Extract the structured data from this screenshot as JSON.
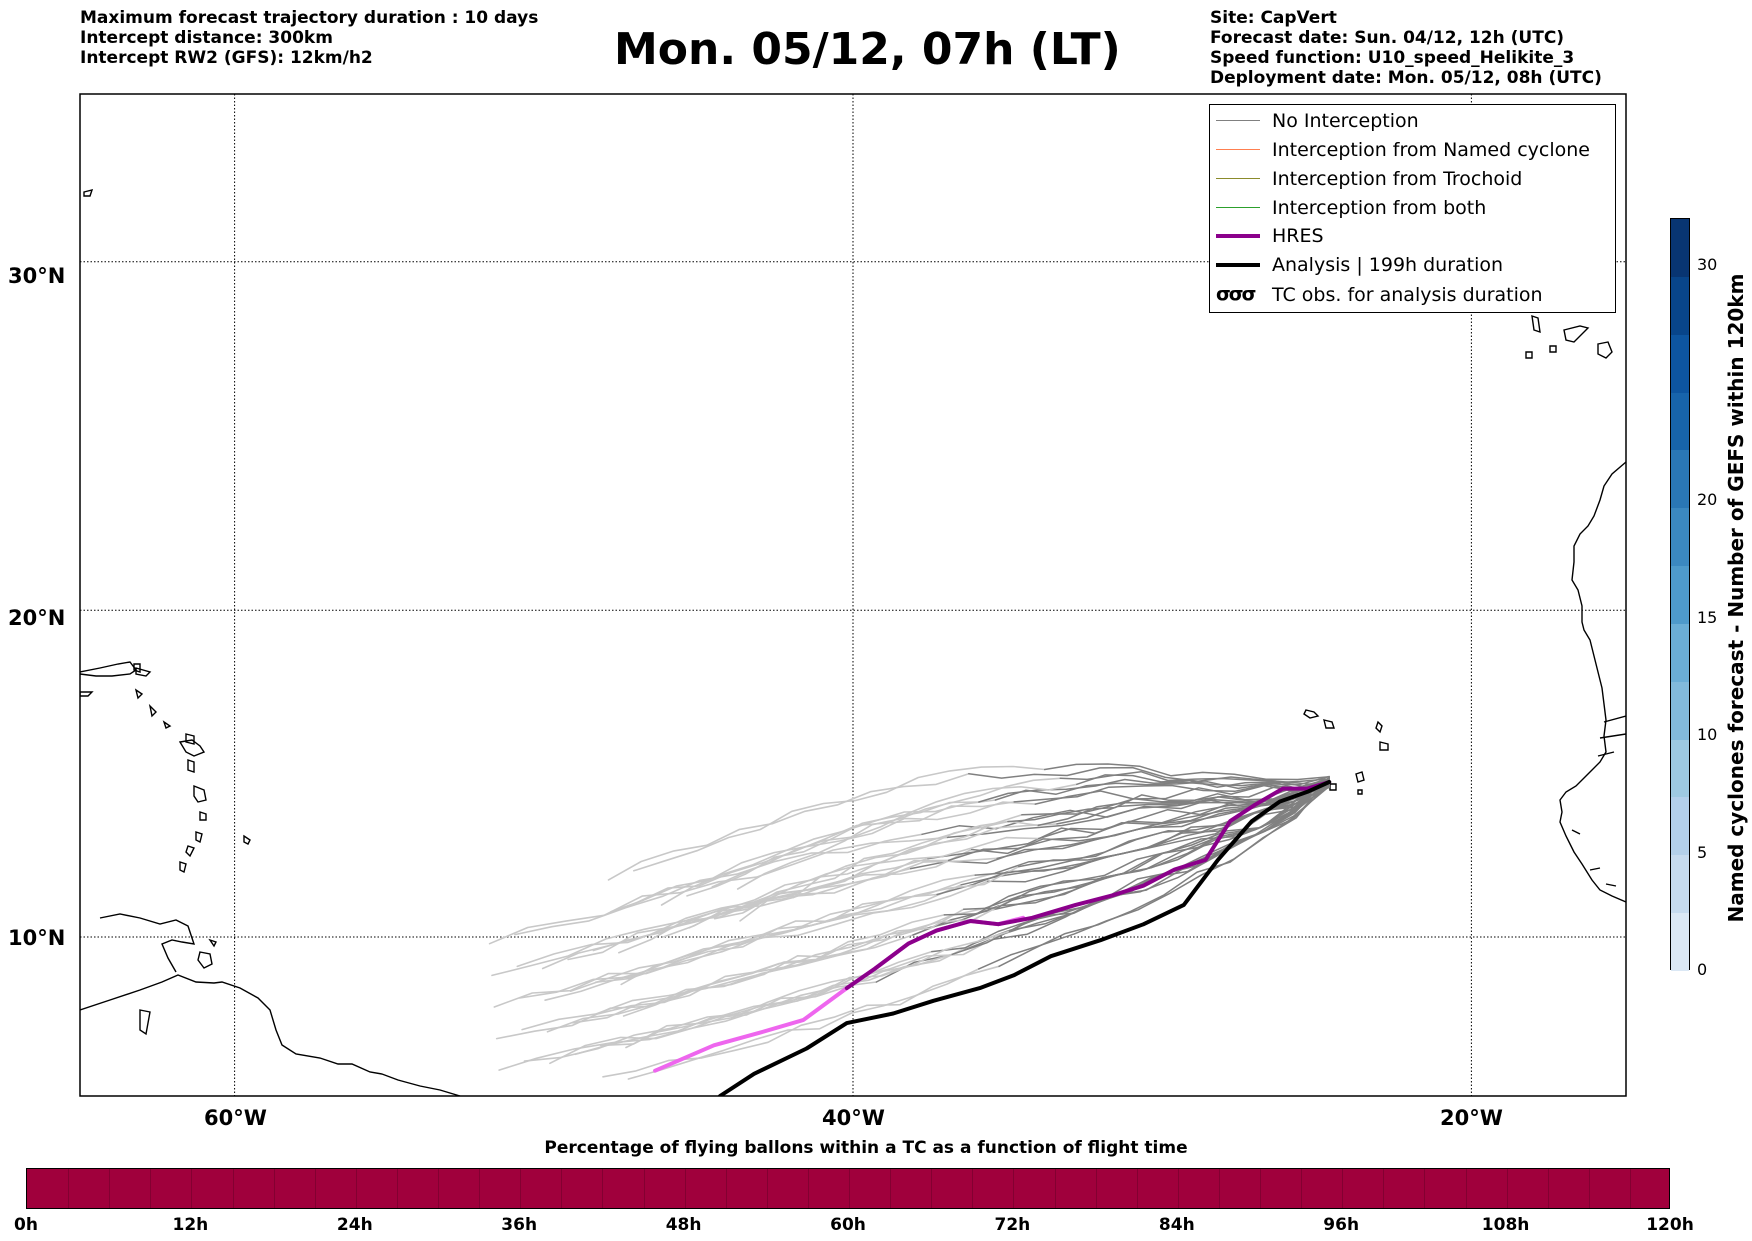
{
  "header": {
    "left_lines": [
      "Maximum forecast trajectory duration : 10 days",
      "Intercept distance: 300km",
      "Intercept RW2 (GFS):  12km/h2"
    ],
    "title": "Mon. 05/12, 07h (LT)",
    "right_lines": [
      "Site: CapVert",
      "Forecast date: Sun. 04/12, 12h (UTC)",
      "Speed function: U10_speed_Helikite_3",
      "Deployment date: Mon. 05/12, 08h (UTC)"
    ]
  },
  "legend": {
    "items": [
      {
        "label": "No Interception",
        "color": "#808080",
        "kind": "line",
        "icon": "thin-line"
      },
      {
        "label": "Interception from Named cyclone",
        "color": "#ff7f50",
        "kind": "line",
        "icon": "thin-line"
      },
      {
        "label": "Interception from Trochoid",
        "color": "#8b8b2b",
        "kind": "line",
        "icon": "thin-line"
      },
      {
        "label": "Interception from both",
        "color": "#2ca02c",
        "kind": "line",
        "icon": "thin-line"
      },
      {
        "label": "HRES",
        "color": "#8b008b",
        "kind": "thick",
        "icon": "thick-line"
      },
      {
        "label": "Analysis | 199h duration",
        "color": "#000000",
        "kind": "thick",
        "icon": "thick-line"
      },
      {
        "label": "TC obs. for analysis duration",
        "color": "#000000",
        "kind": "symbol",
        "icon": "tc-symbol",
        "symbol": "σσσ"
      }
    ]
  },
  "map": {
    "lon_range": [
      -65,
      -15
    ],
    "lat_range": [
      5,
      34.5
    ],
    "lat_ticks": [
      {
        "value": 30,
        "label": "30°N"
      },
      {
        "value": 20,
        "label": "20°N"
      },
      {
        "value": 10,
        "label": "10°N"
      }
    ],
    "lon_ticks": [
      {
        "value": -60,
        "label": "60°W"
      },
      {
        "value": -40,
        "label": "40°W"
      },
      {
        "value": -20,
        "label": "20°W"
      }
    ],
    "grid": "dotted",
    "colors": {
      "no_interception": "#808080",
      "early_members": "#c8c8c8",
      "hres_early": "#ee66ee",
      "hres": "#8b008b",
      "analysis": "#000000"
    },
    "launch_site": {
      "lon": -24.6,
      "lat": 14.8
    },
    "analysis_track": [
      [
        -24.6,
        14.8
      ],
      [
        -25.3,
        14.5
      ],
      [
        -26.2,
        14.2
      ],
      [
        -27.1,
        13.6
      ],
      [
        -28.2,
        12.4
      ],
      [
        -29.3,
        11.0
      ],
      [
        -30.6,
        10.4
      ],
      [
        -32.0,
        9.9
      ],
      [
        -33.6,
        9.4
      ],
      [
        -34.8,
        8.8
      ],
      [
        -35.9,
        8.4
      ],
      [
        -37.4,
        8.0
      ],
      [
        -38.7,
        7.6
      ],
      [
        -40.2,
        7.3
      ],
      [
        -41.5,
        6.5
      ],
      [
        -43.2,
        5.7
      ],
      [
        -44.3,
        5.0
      ]
    ],
    "hres_track": [
      [
        -24.6,
        14.8
      ],
      [
        -25.3,
        14.6
      ],
      [
        -26.1,
        14.6
      ],
      [
        -27.0,
        14.1
      ],
      [
        -27.8,
        13.6
      ],
      [
        -28.6,
        12.4
      ],
      [
        -29.6,
        12.1
      ],
      [
        -30.6,
        11.6
      ],
      [
        -31.6,
        11.3
      ],
      [
        -32.8,
        11.0
      ],
      [
        -34.2,
        10.6
      ],
      [
        -35.3,
        10.4
      ],
      [
        -36.2,
        10.5
      ],
      [
        -37.3,
        10.2
      ],
      [
        -38.2,
        9.8
      ],
      [
        -39.3,
        9.0
      ],
      [
        -40.2,
        8.4
      ]
    ],
    "hres_early_track": [
      [
        -34.5,
        10.6
      ],
      [
        -35.3,
        10.4
      ],
      [
        -36.2,
        10.5
      ],
      [
        -37.3,
        10.2
      ],
      [
        -38.2,
        9.8
      ],
      [
        -39.3,
        9.0
      ],
      [
        -40.2,
        8.4
      ],
      [
        -41.6,
        7.4
      ],
      [
        -43.0,
        7.0
      ],
      [
        -44.5,
        6.6
      ],
      [
        -46.4,
        5.8
      ]
    ]
  },
  "colorbar_vertical": {
    "label": "Named cyclones forecast - Number of GEFS within 120km",
    "min": 0,
    "max": 32,
    "ticks": [
      0,
      5,
      10,
      15,
      20,
      30
    ],
    "colors": [
      "#dbe8f5",
      "#c6dbef",
      "#b3d0ea",
      "#9ecae1",
      "#82badb",
      "#6baed6",
      "#4e9acb",
      "#3b88c0",
      "#2a77b5",
      "#1764ab",
      "#0d55a0",
      "#08458a",
      "#083572"
    ]
  },
  "colorbar_horizontal": {
    "title": "Percentage of flying ballons within a TC as a function of flight time",
    "ticks": [
      "0h",
      "12h",
      "24h",
      "36h",
      "48h",
      "60h",
      "72h",
      "84h",
      "96h",
      "108h",
      "120h"
    ],
    "fill_color": "#a0003c"
  }
}
